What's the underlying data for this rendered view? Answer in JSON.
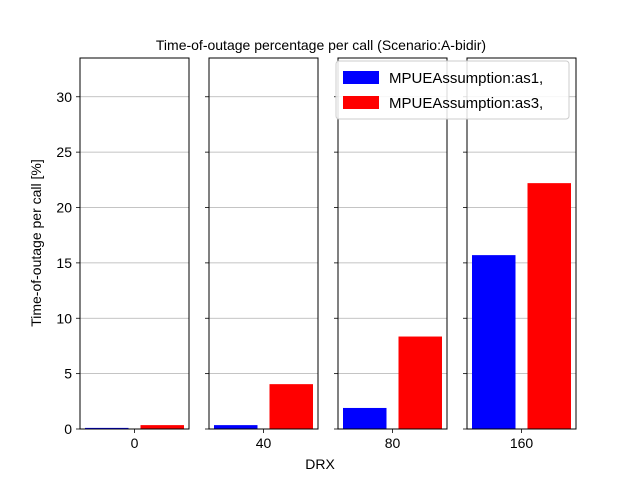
{
  "chart_data": {
    "type": "bar",
    "title": "Time-of-outage percentage per call (Scenario:A-bidir)",
    "xlabel": "DRX",
    "ylabel": "Time-of-outage per call [%]",
    "categories": [
      "0",
      "40",
      "80",
      "160"
    ],
    "series": [
      {
        "name": "MPUEAssumption:as1,",
        "color": "#0000ff",
        "values": [
          0.1,
          0.35,
          1.9,
          15.7
        ]
      },
      {
        "name": "MPUEAssumption:as3,",
        "color": "#ff0000",
        "values": [
          0.35,
          4.05,
          8.35,
          22.2
        ]
      }
    ],
    "ylim": [
      0,
      33.5
    ],
    "yticks": [
      0,
      5,
      10,
      15,
      20,
      25,
      30
    ],
    "ytick_labels": [
      "0",
      "5",
      "10",
      "15",
      "20",
      "25",
      "30"
    ],
    "grid": true,
    "legend_position": "top-right"
  }
}
